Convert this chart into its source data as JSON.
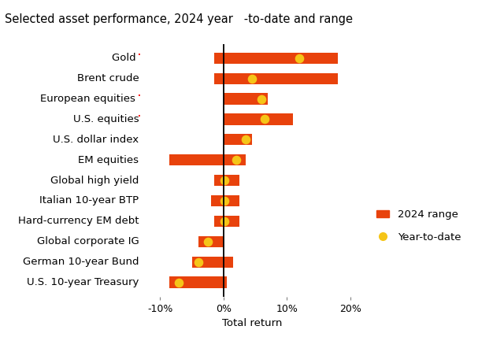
{
  "title": "Selected asset performance, 2024 year   -to-date and range",
  "xlabel": "Total return",
  "categories": [
    "U.S. 10-year Treasury",
    "German 10-year Bund",
    "Global corporate IG",
    "Hard-currency EM debt",
    "Italian 10-year BTP",
    "Global high yield",
    "EM equities",
    "U.S. dollar index",
    "U.S. equities·",
    "European equities ·",
    "Brent crude",
    "Gold ·"
  ],
  "cat_colors": [
    "black",
    "black",
    "black",
    "black",
    "black",
    "black",
    "black",
    "black",
    "black",
    "black",
    "black",
    "black"
  ],
  "superscript_colors": [
    null,
    null,
    null,
    null,
    null,
    null,
    null,
    null,
    "red",
    "red",
    null,
    "red"
  ],
  "bar_left": [
    -8.5,
    -5.0,
    -4.0,
    -1.5,
    -2.0,
    -1.5,
    -8.5,
    0.0,
    0.0,
    0.0,
    -1.5,
    -1.5
  ],
  "bar_right": [
    0.5,
    1.5,
    0.0,
    2.5,
    2.5,
    2.5,
    3.5,
    4.5,
    11.0,
    7.0,
    18.0,
    18.0
  ],
  "ytd_values": [
    -7.0,
    -4.0,
    -2.5,
    0.2,
    0.2,
    0.2,
    2.0,
    3.5,
    6.5,
    6.0,
    4.5,
    12.0
  ],
  "bar_color": "#E8420C",
  "dot_color": "#F5C518",
  "bar_height": 0.55,
  "xlim": [
    -13,
    22
  ],
  "xticks": [
    -10,
    0,
    10,
    20
  ],
  "xticklabels": [
    "-10%",
    "0%",
    "10%",
    "20%"
  ],
  "vline_x": 0,
  "legend_range_label": "2024 range",
  "legend_ytd_label": "Year-to-date",
  "title_fontsize": 10.5,
  "label_fontsize": 9.5,
  "tick_fontsize": 9,
  "dot_size": 70
}
